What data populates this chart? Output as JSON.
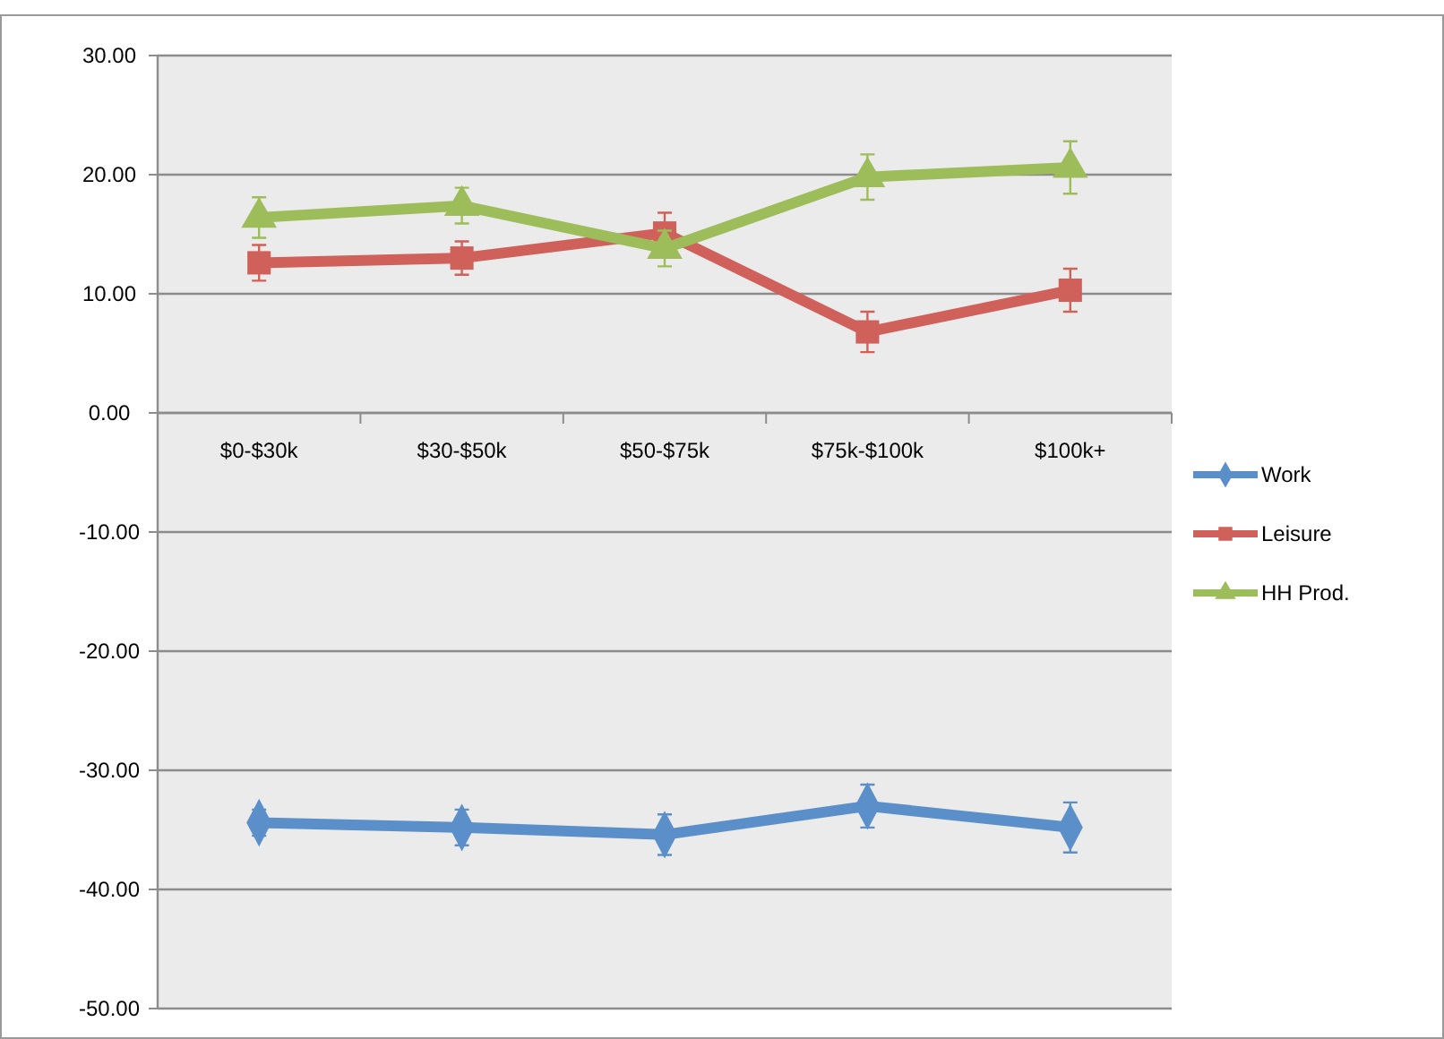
{
  "chart_data": {
    "type": "line",
    "categories": [
      "$0-$30k",
      "$30-$50k",
      "$50-$75k",
      "$75k-$100k",
      "$100k+"
    ],
    "series": [
      {
        "name": "Work",
        "color": "#5b8fc9",
        "marker": "diamond",
        "values": [
          -34.4,
          -34.8,
          -35.4,
          -33.0,
          -34.8
        ],
        "errors": [
          1.1,
          1.5,
          1.7,
          1.8,
          2.1
        ]
      },
      {
        "name": "Leisure",
        "color": "#d0605a",
        "marker": "square",
        "values": [
          12.6,
          13.0,
          15.1,
          6.8,
          10.3
        ],
        "errors": [
          1.5,
          1.4,
          1.7,
          1.7,
          1.8
        ]
      },
      {
        "name": "HH Prod.",
        "color": "#9dbd5a",
        "marker": "triangle",
        "values": [
          16.4,
          17.4,
          13.8,
          19.8,
          20.6
        ],
        "errors": [
          1.7,
          1.5,
          1.5,
          1.9,
          2.2
        ]
      }
    ],
    "ylim": [
      -50,
      30
    ],
    "yticks": [
      {
        "value": 30,
        "label": "30.00"
      },
      {
        "value": 20,
        "label": "20.00"
      },
      {
        "value": 10,
        "label": "10.00"
      },
      {
        "value": 0,
        "label": "0.00"
      },
      {
        "value": -10,
        "label": "-10.00"
      },
      {
        "value": -20,
        "label": "-20.00"
      },
      {
        "value": -30,
        "label": "-30.00"
      },
      {
        "value": -40,
        "label": "-40.00"
      },
      {
        "value": -50,
        "label": "-50.00"
      }
    ],
    "grid": "y",
    "legend": "right"
  }
}
